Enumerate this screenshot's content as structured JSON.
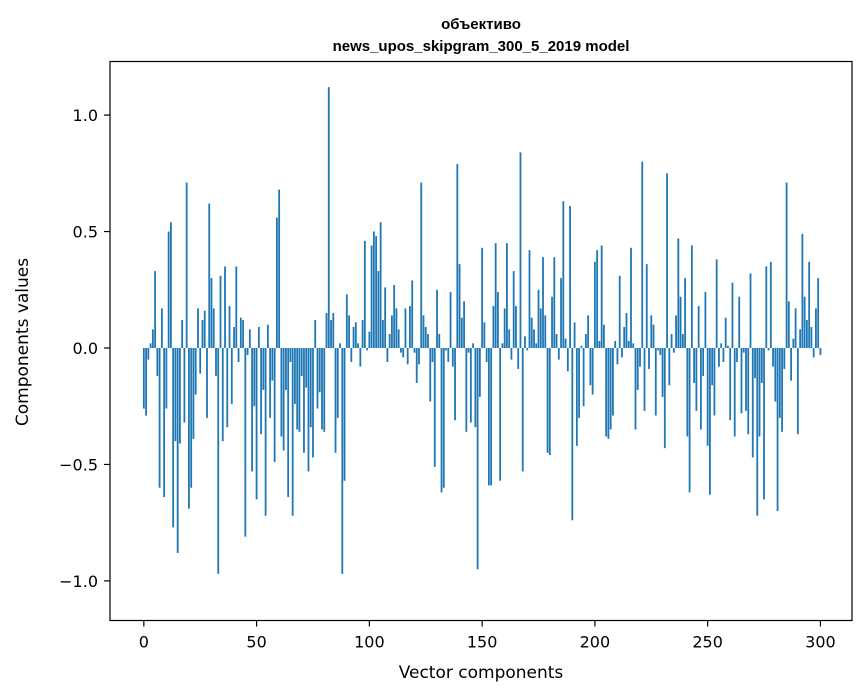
{
  "chart_data": {
    "type": "bar",
    "title": "объективо",
    "subtitle": "news_upos_skipgram_300_5_2019 model",
    "xlabel": "Vector components",
    "ylabel": "Components values",
    "xlim": [
      -15,
      314
    ],
    "ylim": [
      -1.17,
      1.23
    ],
    "xticks": [
      0,
      50,
      100,
      150,
      200,
      250,
      300
    ],
    "xtick_labels": [
      "0",
      "50",
      "100",
      "150",
      "200",
      "250",
      "300"
    ],
    "yticks": [
      -1.0,
      -0.5,
      0.0,
      0.5,
      1.0
    ],
    "ytick_labels": [
      "−1.0",
      "−0.5",
      "0.0",
      "0.5",
      "1.0"
    ],
    "grid": false,
    "bar_color": "#1f77b4",
    "values": [
      -0.26,
      -0.29,
      -0.05,
      0.02,
      0.08,
      0.33,
      -0.12,
      -0.6,
      0.17,
      -0.64,
      -0.26,
      0.5,
      0.54,
      -0.77,
      -0.4,
      -0.88,
      -0.41,
      0.12,
      -0.32,
      0.71,
      -0.69,
      -0.6,
      -0.39,
      -0.2,
      0.17,
      -0.11,
      0.12,
      0.16,
      -0.3,
      0.62,
      0.3,
      0.17,
      -0.12,
      -0.97,
      0.31,
      -0.4,
      0.35,
      -0.34,
      0.18,
      -0.24,
      0.09,
      0.35,
      -0.06,
      0.13,
      0.12,
      -0.81,
      -0.03,
      0.08,
      -0.53,
      -0.25,
      -0.65,
      0.09,
      -0.37,
      -0.18,
      -0.72,
      0.1,
      -0.3,
      -0.14,
      -0.49,
      0.56,
      0.68,
      -0.38,
      -0.44,
      -0.18,
      -0.64,
      -0.06,
      -0.72,
      -0.24,
      -0.35,
      -0.36,
      -0.12,
      -0.45,
      -0.17,
      -0.53,
      -0.34,
      -0.47,
      0.12,
      -0.26,
      -0.19,
      -0.35,
      -0.36,
      0.15,
      1.12,
      0.12,
      0.15,
      -0.45,
      -0.3,
      0.02,
      -0.97,
      -0.57,
      0.23,
      0.14,
      -0.06,
      0.09,
      0.11,
      0.02,
      -0.08,
      0.12,
      0.46,
      -0.01,
      0.07,
      0.44,
      0.5,
      0.48,
      0.33,
      0.54,
      0.12,
      0.26,
      -0.06,
      0.06,
      0.14,
      0.27,
      0.17,
      0.08,
      -0.02,
      -0.04,
      0.17,
      -0.07,
      0.18,
      0.29,
      -0.02,
      -0.15,
      -0.07,
      0.71,
      0.14,
      0.09,
      0.06,
      -0.23,
      -0.06,
      -0.51,
      0.25,
      0.06,
      -0.62,
      -0.6,
      -0.01,
      -0.06,
      0.24,
      -0.08,
      -0.31,
      0.79,
      0.36,
      0.13,
      0.2,
      -0.36,
      -0.02,
      -0.32,
      0.02,
      -0.34,
      -0.95,
      -0.21,
      0.43,
      0.11,
      -0.06,
      -0.59,
      -0.59,
      0.18,
      0.45,
      0.24,
      -0.57,
      0.02,
      0.17,
      0.45,
      0.08,
      -0.05,
      0.33,
      0.18,
      -0.09,
      0.84,
      -0.53,
      0.05,
      -0.01,
      0.42,
      0.13,
      0.08,
      0.02,
      0.25,
      0.17,
      0.39,
      0.14,
      -0.45,
      -0.46,
      0.22,
      0.39,
      0.06,
      -0.05,
      0.3,
      0.63,
      0.04,
      -0.1,
      0.61,
      -0.74,
      0.11,
      -0.42,
      -0.3,
      0.01,
      -0.25,
      0.06,
      0.14,
      -0.16,
      -0.2,
      0.37,
      0.42,
      0.03,
      0.44,
      0.1,
      -0.38,
      -0.39,
      -0.35,
      -0.29,
      0.03,
      -0.07,
      0.31,
      -0.04,
      0.09,
      0.15,
      0.03,
      0.43,
      0.02,
      -0.35,
      -0.18,
      -0.08,
      0.8,
      -0.27,
      0.36,
      -0.09,
      0.14,
      0.1,
      -0.29,
      -0.01,
      -0.03,
      -0.21,
      -0.43,
      0.75,
      -0.16,
      0.06,
      -0.02,
      0.14,
      0.47,
      0.22,
      0.06,
      0.3,
      -0.38,
      -0.62,
      0.44,
      -0.15,
      -0.27,
      0.18,
      -0.35,
      -0.12,
      0.24,
      -0.42,
      -0.63,
      -0.16,
      -0.29,
      0.38,
      -0.08,
      0.02,
      -0.06,
      0.13,
      0.01,
      -0.31,
      0.28,
      -0.38,
      -0.06,
      0.22,
      -0.28,
      -0.02,
      -0.27,
      -0.37,
      0.32,
      -0.47,
      -0.13,
      -0.72,
      -0.38,
      -0.15,
      -0.65,
      0.35,
      -0.01,
      0.37,
      -0.08,
      -0.23,
      -0.7,
      -0.3,
      -0.36,
      -0.09,
      0.71,
      0.2,
      -0.14,
      0.04,
      0.17,
      -0.37,
      0.08,
      0.49,
      0.22,
      0.12,
      0.37,
      0.09,
      -0.04,
      0.17,
      0.3,
      -0.03
    ]
  }
}
